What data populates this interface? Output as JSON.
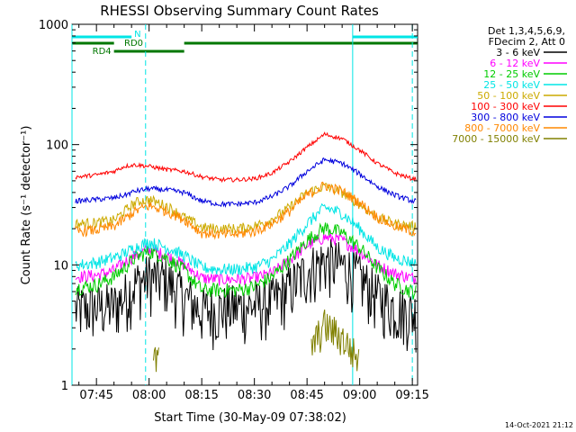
{
  "chart_data": {
    "type": "line",
    "title": "RHESSI Observing Summary Count Rates",
    "xlabel": "Start Time (30-May-09 07:38:02)",
    "ylabel": "Count Rate (s⁻¹ detector⁻¹)",
    "yscale": "log",
    "ylim": [
      1,
      1000
    ],
    "xlim": [
      "07:38:02",
      "09:16:30"
    ],
    "x_ticks": [
      "07:45",
      "08:00",
      "08:15",
      "08:30",
      "08:45",
      "09:00",
      "09:15"
    ],
    "y_ticks": [
      "1",
      "10",
      "100",
      "1000"
    ],
    "grid": false,
    "legend_position": "right",
    "legend_header": [
      "Det 1,3,4,5,6,9,",
      "FDecim 2, Att 0"
    ],
    "timestamp": "14-Oct-2021 21:12",
    "x": [
      "07:40",
      "07:45",
      "07:50",
      "07:53",
      "07:56",
      "08:00",
      "08:05",
      "08:10",
      "08:15",
      "08:20",
      "08:25",
      "08:30",
      "08:35",
      "08:40",
      "08:45",
      "08:50",
      "08:55",
      "09:00",
      "09:05",
      "09:10",
      "09:15"
    ],
    "series": [
      {
        "name": "3 - 6 keV",
        "color": "#000000",
        "values": [
          4.3,
          4.5,
          4.6,
          5.5,
          7,
          8,
          7.5,
          5.5,
          4.2,
          4.3,
          4.5,
          4.6,
          5,
          6.5,
          9,
          11,
          10,
          8,
          5.5,
          4.5,
          4.0
        ]
      },
      {
        "name": "6 - 12 keV",
        "color": "#ff00ff",
        "values": [
          8,
          8.2,
          9,
          10.5,
          12,
          13.5,
          12,
          10,
          7.8,
          7.6,
          7.6,
          7.8,
          8.5,
          11,
          14.5,
          17,
          16,
          13,
          10,
          8.5,
          7.8
        ]
      },
      {
        "name": "12 - 25 keV",
        "color": "#00cc00",
        "values": [
          6.5,
          6.8,
          8,
          9.5,
          11.5,
          13,
          11.5,
          9,
          6.2,
          6.2,
          6.2,
          6.6,
          8,
          11,
          16,
          20.5,
          18.5,
          14,
          9.5,
          7,
          6
        ]
      },
      {
        "name": "25 - 50 keV",
        "color": "#00e5e5",
        "values": [
          10,
          10.5,
          11.5,
          12.5,
          14,
          15.5,
          14,
          12,
          9.5,
          9.2,
          9.2,
          9.6,
          11,
          15,
          22,
          30,
          27,
          20,
          14,
          11.5,
          10.5
        ]
      },
      {
        "name": "50 - 100 keV",
        "color": "#ccaa00",
        "values": [
          22,
          22.5,
          23.5,
          28,
          33,
          35,
          31,
          25,
          20.5,
          20,
          20,
          21,
          24,
          30,
          40,
          45,
          40,
          32,
          25,
          22,
          21
        ]
      },
      {
        "name": "100 - 300 keV",
        "color": "#ff0000",
        "values": [
          54,
          56,
          60,
          66,
          68,
          66,
          62,
          60,
          54,
          51,
          51,
          52,
          58,
          72,
          95,
          122,
          112,
          90,
          70,
          58,
          52
        ]
      },
      {
        "name": "300 - 800 keV",
        "color": "#0000dd",
        "values": [
          34,
          35,
          36,
          38,
          41,
          43,
          42,
          40,
          34,
          32,
          32,
          33,
          37,
          45,
          60,
          75,
          70,
          57,
          45,
          38,
          34
        ]
      },
      {
        "name": "800 - 7000 keV",
        "color": "#ff8800",
        "values": [
          19,
          19.5,
          21,
          24,
          28,
          31,
          28,
          24,
          18.5,
          18,
          18,
          19,
          22,
          28,
          38,
          46,
          41,
          33,
          25,
          21,
          19
        ]
      },
      {
        "name": "7000 - 15000 keV",
        "color": "#808000",
        "values": [
          null,
          null,
          null,
          null,
          null,
          1.6,
          null,
          null,
          null,
          null,
          null,
          null,
          null,
          null,
          1.8,
          3.2,
          2.5,
          1.6,
          null,
          null,
          null
        ]
      }
    ],
    "bars": [
      {
        "label": "N",
        "color": "#00e5e5",
        "ranges": [
          [
            "07:38:02",
            "07:55"
          ],
          [
            "08:58",
            "09:16:30"
          ]
        ]
      },
      {
        "label": "RD0",
        "color": "#007700",
        "ranges": [
          [
            "07:38:02",
            "07:50"
          ],
          [
            "08:10",
            "09:16:30"
          ]
        ]
      },
      {
        "label": "RD4",
        "color": "#007700",
        "ranges": [
          [
            "07:50",
            "08:10"
          ]
        ]
      }
    ],
    "vlines_solid": [
      "07:38:02",
      "08:58"
    ],
    "vlines_dashed": [
      "07:59",
      "09:15"
    ]
  }
}
